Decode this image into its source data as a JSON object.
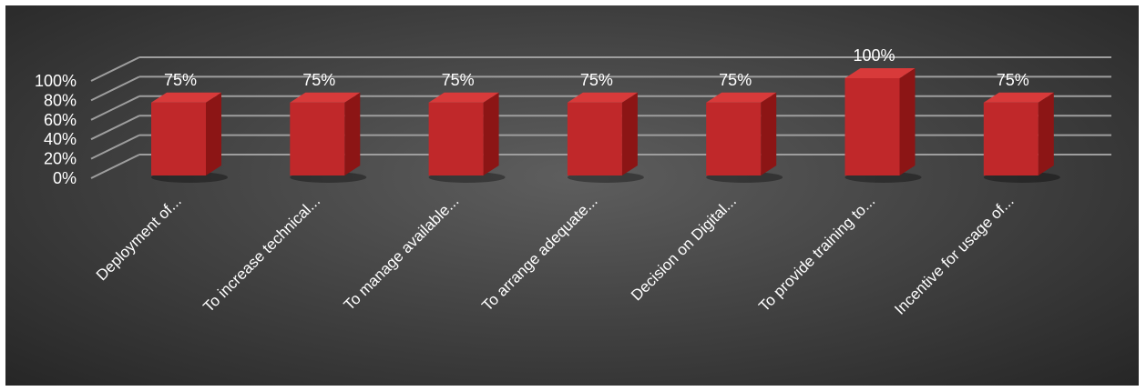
{
  "chart_data": {
    "type": "bar",
    "categories": [
      "Deployment of...",
      "To increase technical...",
      "To manage available...",
      "To arrange adequate...",
      "Decision on Digital...",
      "To provide training to...",
      "Incentive for usage of..."
    ],
    "values": [
      75,
      75,
      75,
      75,
      75,
      100,
      75
    ],
    "data_labels": [
      "75%",
      "75%",
      "75%",
      "75%",
      "75%",
      "100%",
      "75%"
    ],
    "y_ticks": [
      "0%",
      "20%",
      "40%",
      "60%",
      "80%",
      "100%"
    ],
    "ylim": [
      0,
      100
    ],
    "grid": true,
    "legend": "none",
    "style": "3d-column",
    "colors": {
      "bar_front": "#c0282a",
      "bar_side": "#8c1515",
      "bar_top": "#d83a3a",
      "gridline": "#9e9e9e",
      "text": "#ffffff"
    }
  }
}
